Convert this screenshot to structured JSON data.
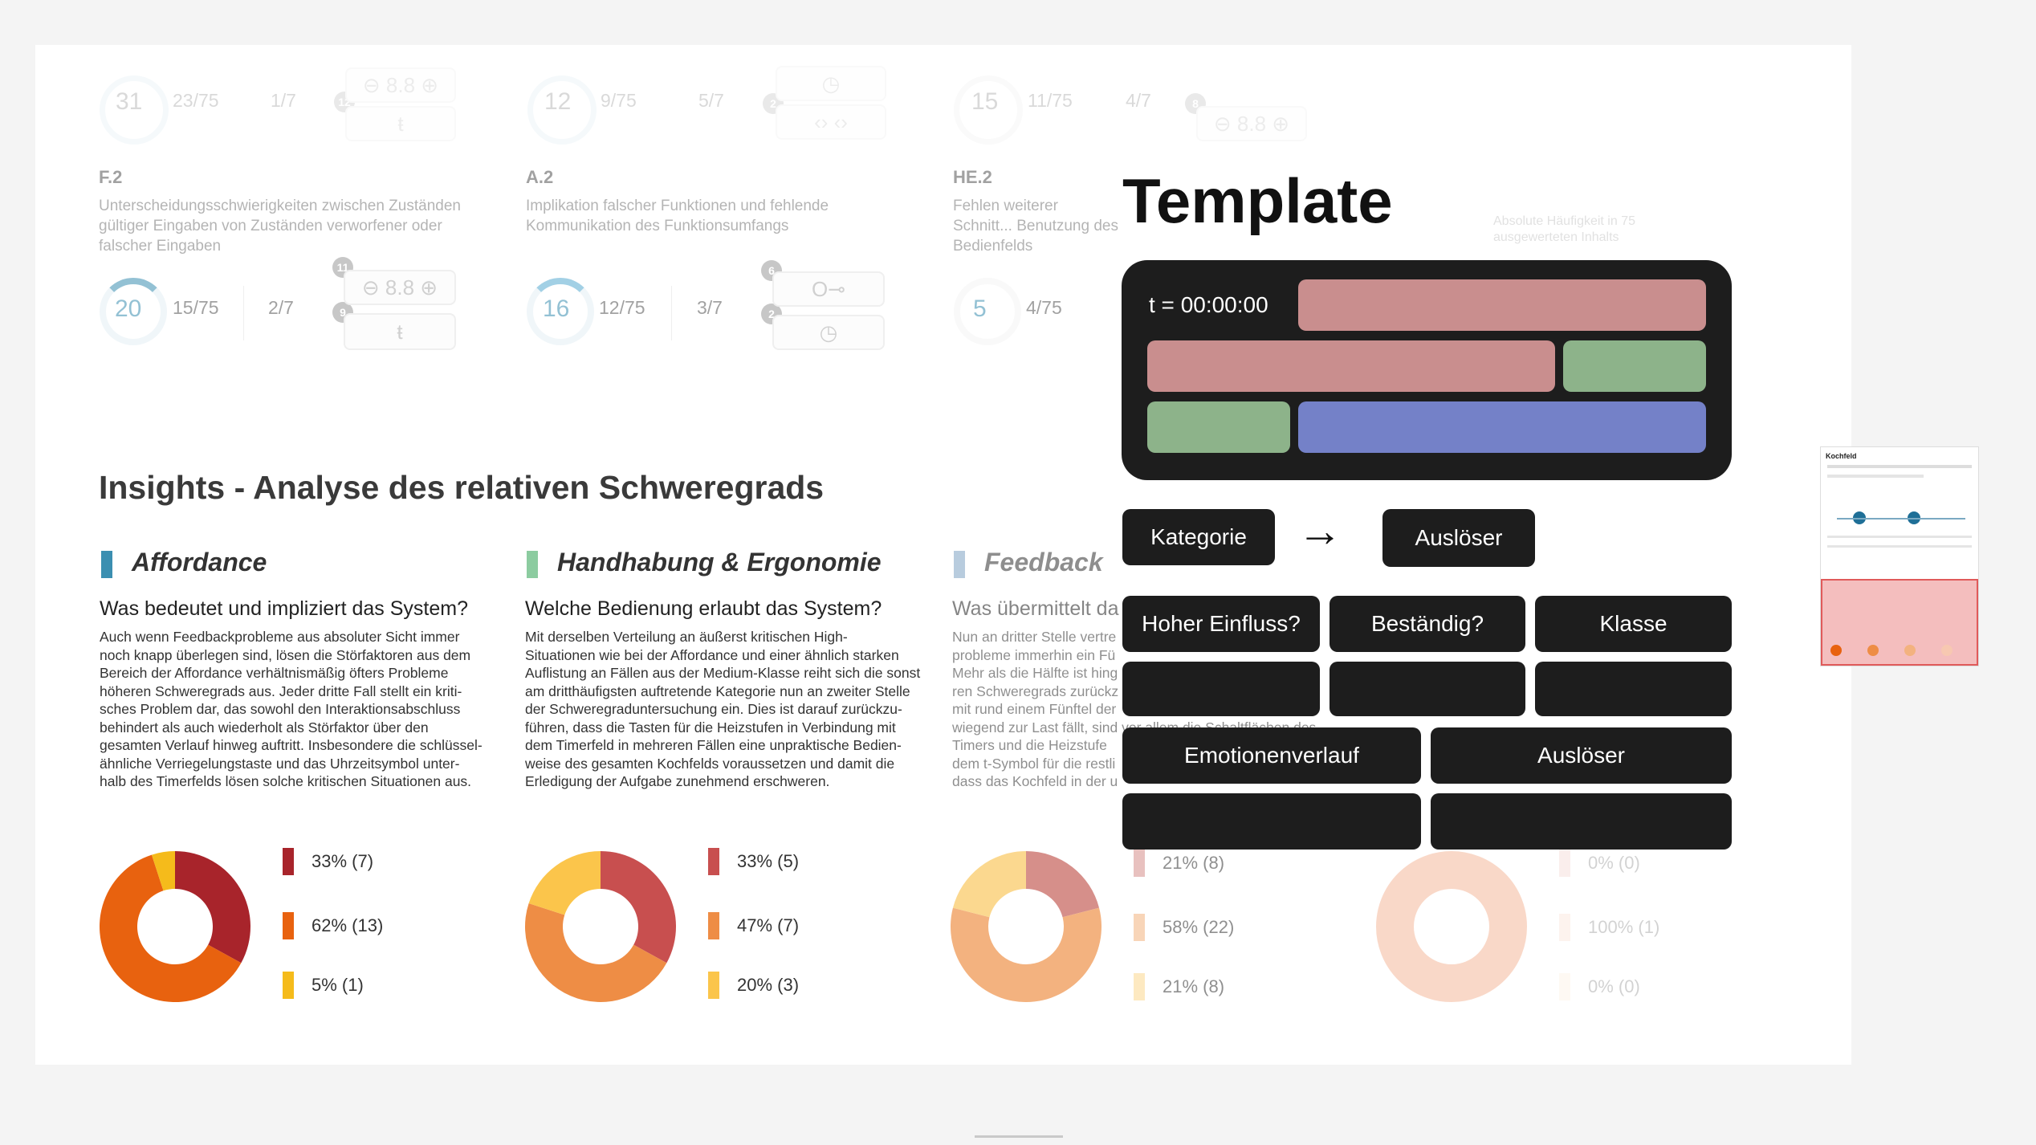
{
  "top_row": [
    {
      "code": "F.2",
      "description": "Unterscheidungsschwierigkeiten zwischen Zuständen gültiger Eingaben von Zuständen verworfener oder falscher Eingaben",
      "value": "20",
      "count": "15/75",
      "ratio": "2/7",
      "badges": [
        "11",
        "9"
      ]
    },
    {
      "code": "A.2",
      "description": "Implikation falscher Funktionen und fehlende Kommunikation des Funktionsumfangs",
      "value": "16",
      "count": "12/75",
      "ratio": "3/7",
      "badges": [
        "6",
        "2"
      ]
    },
    {
      "code": "HE.2",
      "description": "Fehlen weiterer Schnitt... Benutzung des Bedienfelds",
      "value": "5",
      "count": "4/75"
    }
  ],
  "faded_top_row": [
    {
      "value": "31",
      "count": "23/75",
      "ratio": "1/7",
      "badge": "12"
    },
    {
      "value": "12",
      "count": "9/75",
      "ratio": "5/7",
      "badge": "2"
    },
    {
      "value": "15",
      "count": "11/75",
      "ratio": "4/7",
      "badge": "8"
    }
  ],
  "faded_note": "Absolute Häufigkeit in 75 ausgewerteten Inhalts",
  "section_title": "Insights - Analyse des relativen Schweregrads",
  "columns": [
    {
      "category": "Affordance",
      "color": "#3b8fb1",
      "question": "Was bedeutet und impliziert das System?",
      "body": [
        "Auch wenn Feedbackprobleme aus absoluter Sicht immer",
        "noch knapp überlegen sind, lösen die Störfaktoren aus dem",
        "Bereich der Affordance verhältnismäßig öfters Probleme",
        "höheren Schweregrads aus. Jeder dritte Fall stellt ein kriti-",
        "sches Problem dar, das sowohl den Interaktionsabschluss",
        "behindert als auch wiederholt als Störfaktor über den",
        "gesamten Verlauf hinweg auftritt. Insbesondere die schlüssel-",
        "ähnliche Verriegelungstaste und das Uhrzeitsymbol unter-",
        "halb des Timerfelds lösen solche kritischen Situationen aus."
      ],
      "legend": [
        "33% (7)",
        "62% (13)",
        "5% (1)"
      ]
    },
    {
      "category": "Handhabung & Ergonomie",
      "color": "#8ccca0",
      "question": "Welche Bedienung erlaubt das System?",
      "body": [
        "Mit derselben Verteilung an äußerst kritischen High-",
        "Situationen wie bei der Affordance und einer ähnlich starken",
        "Auflistung an Fällen aus der Medium-Klasse reiht sich die sonst",
        "am dritthäufigsten auftretende Kategorie nun an zweiter Stelle",
        "der Schweregraduntersuchung ein. Dies ist darauf zurückzu-",
        "führen, dass die Tasten für die Heizstufen in Verbindung mit",
        "dem Timerfeld in mehreren Fällen eine unpraktische Bedien-",
        "weise des gesamten Kochfelds voraussetzen und damit die",
        "Erledigung der Aufgabe zunehmend erschweren."
      ],
      "legend": [
        "33% (5)",
        "47% (7)",
        "20% (3)"
      ]
    },
    {
      "category": "Feedback",
      "color": "#7fa3c4",
      "question": "Was übermittelt da",
      "body": [
        "Nun an dritter Stelle vertre",
        "probleme immerhin ein Fü",
        "Mehr als die Hälfte ist hing",
        "ren Schweregrads zurückz",
        "mit rund einem Fünftel der",
        "wiegend zur Last fällt, sind vor allem die Schaltflächen des",
        "Timers und die Heizstufe",
        "dem t-Symbol für die restli",
        "dass das Kochfeld in der u"
      ],
      "legend": [
        "21% (8)",
        "58% (22)",
        "21% (8)"
      ]
    },
    {
      "legend": [
        "0% (0)",
        "100% (1)",
        "0% (0)"
      ]
    }
  ],
  "donuts": [
    {
      "values": [
        33,
        62,
        5
      ],
      "colors": [
        "#a8242b",
        "#e8620f",
        "#f5bb1b"
      ],
      "opacity": 1
    },
    {
      "values": [
        33,
        47,
        20
      ],
      "colors": [
        "#c84f4f",
        "#ee8d45",
        "#fbc54b"
      ],
      "opacity": 1
    },
    {
      "values": [
        21,
        58,
        21
      ],
      "colors": [
        "#d68f8a",
        "#f3b27f",
        "#fbd88f"
      ],
      "opacity": 1
    },
    {
      "values": [
        0,
        100,
        0
      ],
      "colors": [
        "#e9b3a8",
        "#f7c8b1",
        "#fbe4c7"
      ],
      "opacity": 0.7
    }
  ],
  "template": {
    "title": "Template",
    "time_label": "t = 00:00:00",
    "bar_colors": {
      "red": "#c98e8e",
      "green": "#8db38a",
      "blue": "#7481c8"
    },
    "kategorie": "Kategorie",
    "arrow": "→",
    "ausloeser": "Auslöser",
    "row1": [
      "Hoher Einfluss?",
      "Beständig?",
      "Klasse"
    ],
    "row3": [
      "Emotionenverlauf",
      "Auslöser"
    ]
  },
  "thumbnail": {
    "title": "Kochfeld"
  }
}
